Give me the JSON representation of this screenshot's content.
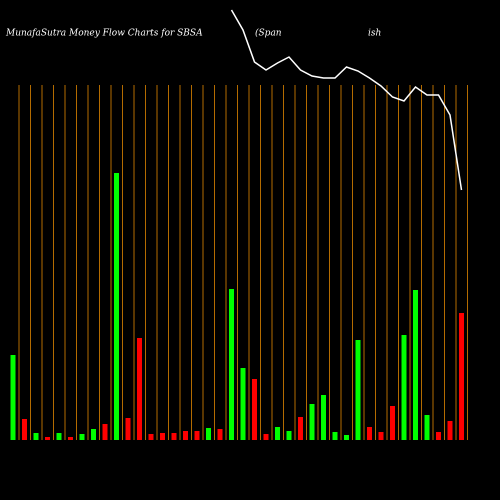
{
  "chart_data": {
    "type": "bar",
    "title": "MunafaSutra  Money Flow  Charts for SBSA",
    "subtitle_parts": [
      "(Span",
      "ish"
    ],
    "categories": [
      null,
      null,
      null,
      null,
      null,
      null,
      null,
      null,
      null,
      null,
      null,
      null,
      null,
      null,
      null,
      null,
      null,
      null,
      null,
      null,
      null,
      null,
      null,
      null,
      null,
      null,
      null,
      null,
      null,
      null,
      null,
      null,
      null,
      null,
      null,
      null,
      null,
      null,
      null,
      null
    ],
    "values": [
      85,
      21,
      7,
      3,
      7,
      3,
      6,
      11,
      16,
      267,
      22,
      102,
      6,
      7,
      7,
      9,
      9,
      12,
      11,
      151,
      72,
      61,
      6,
      13,
      9,
      23,
      36,
      45,
      8,
      5,
      100,
      13,
      8,
      34,
      105,
      150,
      25,
      8,
      19,
      127
    ],
    "colors": [
      "#00ff00",
      "#ff0000",
      "#00ff00",
      "#ff0000",
      "#00ff00",
      "#ff0000",
      "#00ff00",
      "#00ff00",
      "#ff0000",
      "#00ff00",
      "#ff0000",
      "#ff0000",
      "#ff0000",
      "#ff0000",
      "#ff0000",
      "#ff0000",
      "#ff0000",
      "#00ff00",
      "#ff0000",
      "#00ff00",
      "#00ff00",
      "#ff0000",
      "#ff0000",
      "#00ff00",
      "#00ff00",
      "#ff0000",
      "#00ff00",
      "#00ff00",
      "#00ff00",
      "#00ff00",
      "#00ff00",
      "#ff0000",
      "#ff0000",
      "#ff0000",
      "#00ff00",
      "#00ff00",
      "#00ff00",
      "#ff0000",
      "#ff0000",
      "#ff0000"
    ],
    "ylim": [
      0,
      440
    ],
    "line": {
      "color": "#ffffff",
      "axis": "y2",
      "values": [
        null,
        null,
        null,
        null,
        null,
        null,
        null,
        null,
        null,
        null,
        null,
        null,
        null,
        null,
        null,
        null,
        null,
        null,
        null,
        430,
        410,
        378,
        370,
        377,
        383,
        370,
        364,
        362,
        362,
        373,
        369,
        362,
        354,
        343,
        339,
        353,
        345,
        345,
        325,
        250
      ]
    },
    "y2lim": [
      0,
      440
    ],
    "grid_color": "#b36b00"
  }
}
